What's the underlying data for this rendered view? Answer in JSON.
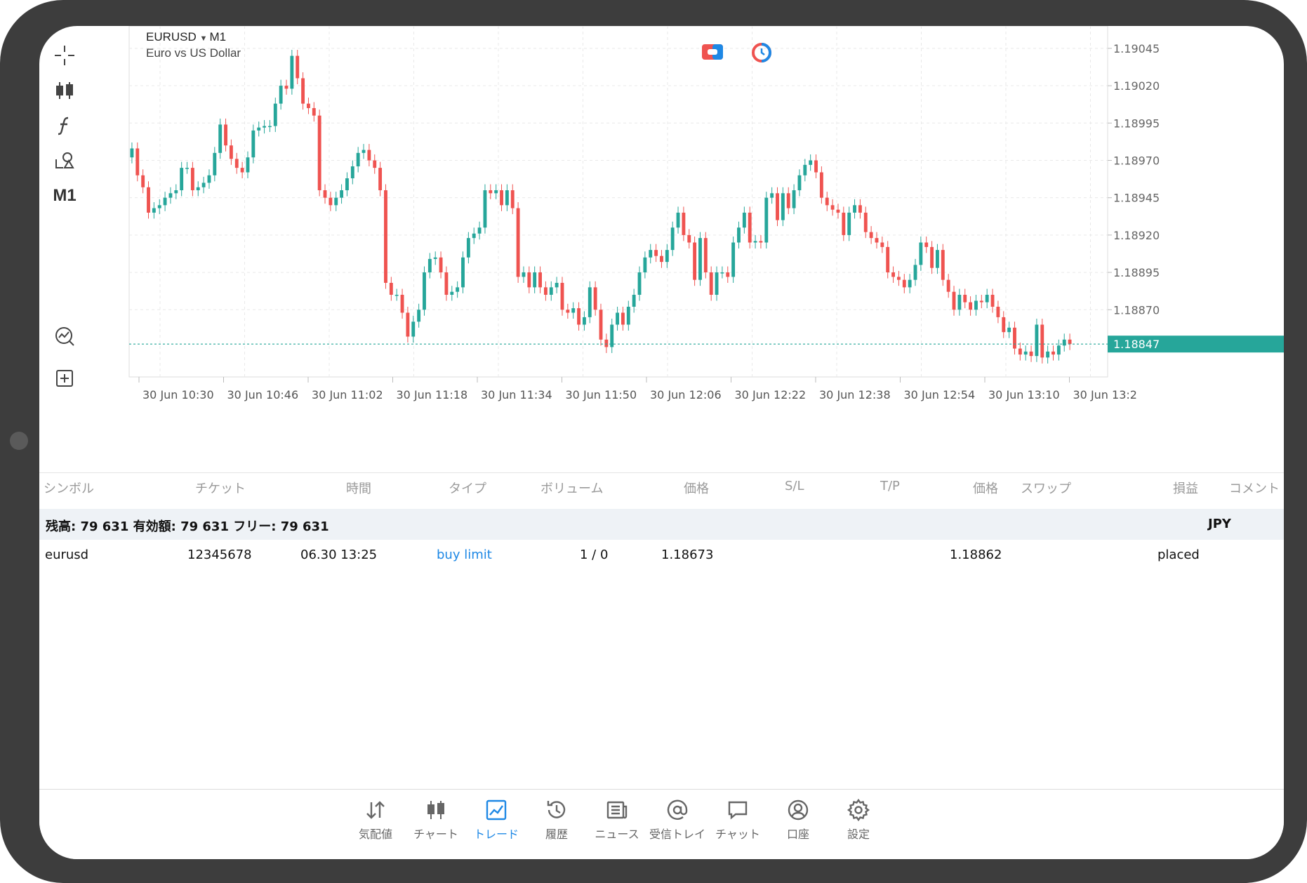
{
  "chart": {
    "symbol": "EURUSD",
    "timeframe": "M1",
    "description": "Euro vs US Dollar",
    "timeframe_button": "M1",
    "current_price": "1.18847",
    "price_levels": [
      "1.19045",
      "1.19020",
      "1.18995",
      "1.18970",
      "1.18945",
      "1.18920",
      "1.18895",
      "1.18870"
    ],
    "time_labels": [
      "30 Jun 10:30",
      "30 Jun 10:46",
      "30 Jun 11:02",
      "30 Jun 11:18",
      "30 Jun 11:34",
      "30 Jun 11:50",
      "30 Jun 12:06",
      "30 Jun 12:22",
      "30 Jun 12:38",
      "30 Jun 12:54",
      "30 Jun 13:10",
      "30 Jun 13:2"
    ],
    "colors": {
      "bull": "#26a69a",
      "bear": "#ef5350",
      "grid": "#e9e9e9",
      "price_line": "#26a69a"
    }
  },
  "chart_data": {
    "type": "candlestick",
    "ylim": [
      1.18825,
      1.1906
    ],
    "closes": [
      1.18978,
      1.1896,
      1.18952,
      1.18935,
      1.18938,
      1.1894,
      1.18945,
      1.18948,
      1.1895,
      1.18965,
      1.18965,
      1.1895,
      1.18952,
      1.18955,
      1.1896,
      1.18975,
      1.18994,
      1.1898,
      1.18971,
      1.18965,
      1.18962,
      1.18972,
      1.1899,
      1.18992,
      1.18993,
      1.18993,
      1.19008,
      1.1902,
      1.19018,
      1.1904,
      1.19025,
      1.19008,
      1.19005,
      1.19,
      1.1895,
      1.18945,
      1.1894,
      1.18945,
      1.1895,
      1.18958,
      1.18966,
      1.18975,
      1.18977,
      1.1897,
      1.18965,
      1.1895,
      1.18888,
      1.1888,
      1.1888,
      1.18868,
      1.18852,
      1.18862,
      1.1887,
      1.18895,
      1.18904,
      1.18905,
      1.18895,
      1.1888,
      1.18882,
      1.18885,
      1.18905,
      1.18918,
      1.18921,
      1.18925,
      1.1895,
      1.18948,
      1.1895,
      1.1894,
      1.1895,
      1.18938,
      1.18892,
      1.18895,
      1.18885,
      1.18895,
      1.18885,
      1.1888,
      1.18885,
      1.18888,
      1.1887,
      1.18868,
      1.18871,
      1.1886,
      1.18865,
      1.18885,
      1.1887,
      1.1885,
      1.18845,
      1.1886,
      1.18868,
      1.1886,
      1.18872,
      1.1888,
      1.18895,
      1.18905,
      1.1891,
      1.18906,
      1.18902,
      1.1891,
      1.18925,
      1.18935,
      1.1892,
      1.18915,
      1.1889,
      1.18918,
      1.18895,
      1.1888,
      1.18895,
      1.18895,
      1.18892,
      1.18915,
      1.18925,
      1.18935,
      1.18915,
      1.18916,
      1.18915,
      1.18945,
      1.18948,
      1.1893,
      1.18948,
      1.18938,
      1.1895,
      1.1896,
      1.18967,
      1.1897,
      1.18962,
      1.18945,
      1.1894,
      1.18937,
      1.18935,
      1.1892,
      1.18935,
      1.1894,
      1.18935,
      1.18922,
      1.18918,
      1.18915,
      1.18912,
      1.18895,
      1.18892,
      1.1889,
      1.18885,
      1.1889,
      1.189,
      1.18915,
      1.18912,
      1.18898,
      1.1891,
      1.1889,
      1.18882,
      1.1887,
      1.1888,
      1.18875,
      1.1887,
      1.18876,
      1.18875,
      1.1888,
      1.18872,
      1.18865,
      1.18855,
      1.18858,
      1.18844,
      1.1884,
      1.18842,
      1.18839,
      1.1886,
      1.18838,
      1.18842,
      1.1884,
      1.18846,
      1.1885,
      1.18847
    ],
    "price_line": 1.18847
  },
  "table": {
    "headers": [
      "シンボル",
      "チケット",
      "時間",
      "タイプ",
      "ボリューム",
      "価格",
      "S/L",
      "T/P",
      "価格",
      "スワップ",
      "損益",
      "コメント"
    ],
    "summary": "残高: 79 631 有効額: 79 631 フリー: 79 631",
    "currency": "JPY",
    "rows": [
      {
        "symbol": "eurusd",
        "ticket": "12345678",
        "time": "06.30 13:25",
        "type": "buy limit",
        "volume": "1 / 0",
        "price": "1.18673",
        "sl": "",
        "tp": "",
        "current_price": "1.18862",
        "swap": "",
        "profit": "",
        "comment": "placed"
      }
    ]
  },
  "nav": {
    "items": [
      {
        "label": "気配値",
        "icon": "quotes-arrows-icon"
      },
      {
        "label": "チャート",
        "icon": "candles-icon"
      },
      {
        "label": "トレード",
        "icon": "trade-chart-icon",
        "active": true
      },
      {
        "label": "履歴",
        "icon": "history-clock-icon"
      },
      {
        "label": "ニュース",
        "icon": "news-icon"
      },
      {
        "label": "受信トレイ",
        "icon": "mail-at-icon"
      },
      {
        "label": "チャット",
        "icon": "chat-bubble-icon"
      },
      {
        "label": "口座",
        "icon": "account-user-icon"
      },
      {
        "label": "設定",
        "icon": "settings-gear-icon"
      }
    ]
  }
}
